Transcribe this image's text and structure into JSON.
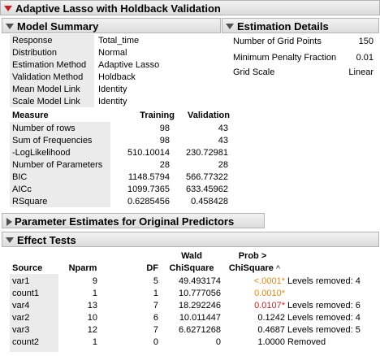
{
  "report": {
    "title": "Adaptive Lasso with Holdback Validation"
  },
  "model_summary": {
    "title": "Model Summary",
    "rows": [
      {
        "label": "Response",
        "value": "Total_time"
      },
      {
        "label": "Distribution",
        "value": "Normal"
      },
      {
        "label": "Estimation Method",
        "value": "Adaptive Lasso"
      },
      {
        "label": "Validation Method",
        "value": "Holdback"
      },
      {
        "label": "Mean Model Link",
        "value": "Identity"
      },
      {
        "label": "Scale Model Link",
        "value": "Identity"
      }
    ],
    "measure_header": {
      "measure": "Measure",
      "training": "Training",
      "validation": "Validation"
    },
    "measures": [
      {
        "label": "Number of rows",
        "training": "98",
        "validation": "43"
      },
      {
        "label": "Sum of Frequencies",
        "training": "98",
        "validation": "43"
      },
      {
        "label": "-LogLikelihood",
        "training": "510.10014",
        "validation": "230.72981"
      },
      {
        "label": "Number of Parameters",
        "training": "28",
        "validation": "28"
      },
      {
        "label": "BIC",
        "training": "1148.5794",
        "validation": "566.77322"
      },
      {
        "label": "AICc",
        "training": "1099.7365",
        "validation": "633.45962"
      },
      {
        "label": "RSquare",
        "training": "0.6285456",
        "validation": "0.458428"
      }
    ]
  },
  "estimation_details": {
    "title": "Estimation Details",
    "rows": [
      {
        "label": "Number of Grid Points",
        "value": "150"
      },
      {
        "label": "Minimum Penalty Fraction",
        "value": "0.01"
      },
      {
        "label": "Grid Scale",
        "value": "Linear"
      }
    ]
  },
  "parameter_estimates": {
    "title": "Parameter Estimates for Original Predictors"
  },
  "effect_tests": {
    "title": "Effect Tests",
    "headers": {
      "source": "Source",
      "nparm": "Nparm",
      "df": "DF",
      "wald_line1": "Wald",
      "wald_line2": "ChiSquare",
      "prob_line1": "Prob >",
      "prob_line2": "ChiSquare",
      "sort_glyph": "^"
    },
    "rows": [
      {
        "source": "var1",
        "nparm": "9",
        "df": "5",
        "chisq": "49.493174",
        "prob": "<.0001*",
        "prob_color": "#e8860f",
        "note": "Levels removed: 4"
      },
      {
        "source": "count1",
        "nparm": "1",
        "df": "1",
        "chisq": "10.777056",
        "prob": "0.0010*",
        "prob_color": "#e8860f",
        "note": ""
      },
      {
        "source": "var4",
        "nparm": "13",
        "df": "7",
        "chisq": "18.292246",
        "prob": "0.0107*",
        "prob_color": "#d42020",
        "note": "Levels removed: 6"
      },
      {
        "source": "var2",
        "nparm": "10",
        "df": "6",
        "chisq": "10.011447",
        "prob": "0.1242",
        "prob_color": "#000000",
        "note": "Levels removed: 4"
      },
      {
        "source": "var3",
        "nparm": "12",
        "df": "7",
        "chisq": "6.6271268",
        "prob": "0.4687",
        "prob_color": "#000000",
        "note": "Levels removed: 5"
      },
      {
        "source": "count2",
        "nparm": "1",
        "df": "0",
        "chisq": "0",
        "prob": "1.0000",
        "prob_color": "#000000",
        "note": "Removed"
      }
    ]
  }
}
